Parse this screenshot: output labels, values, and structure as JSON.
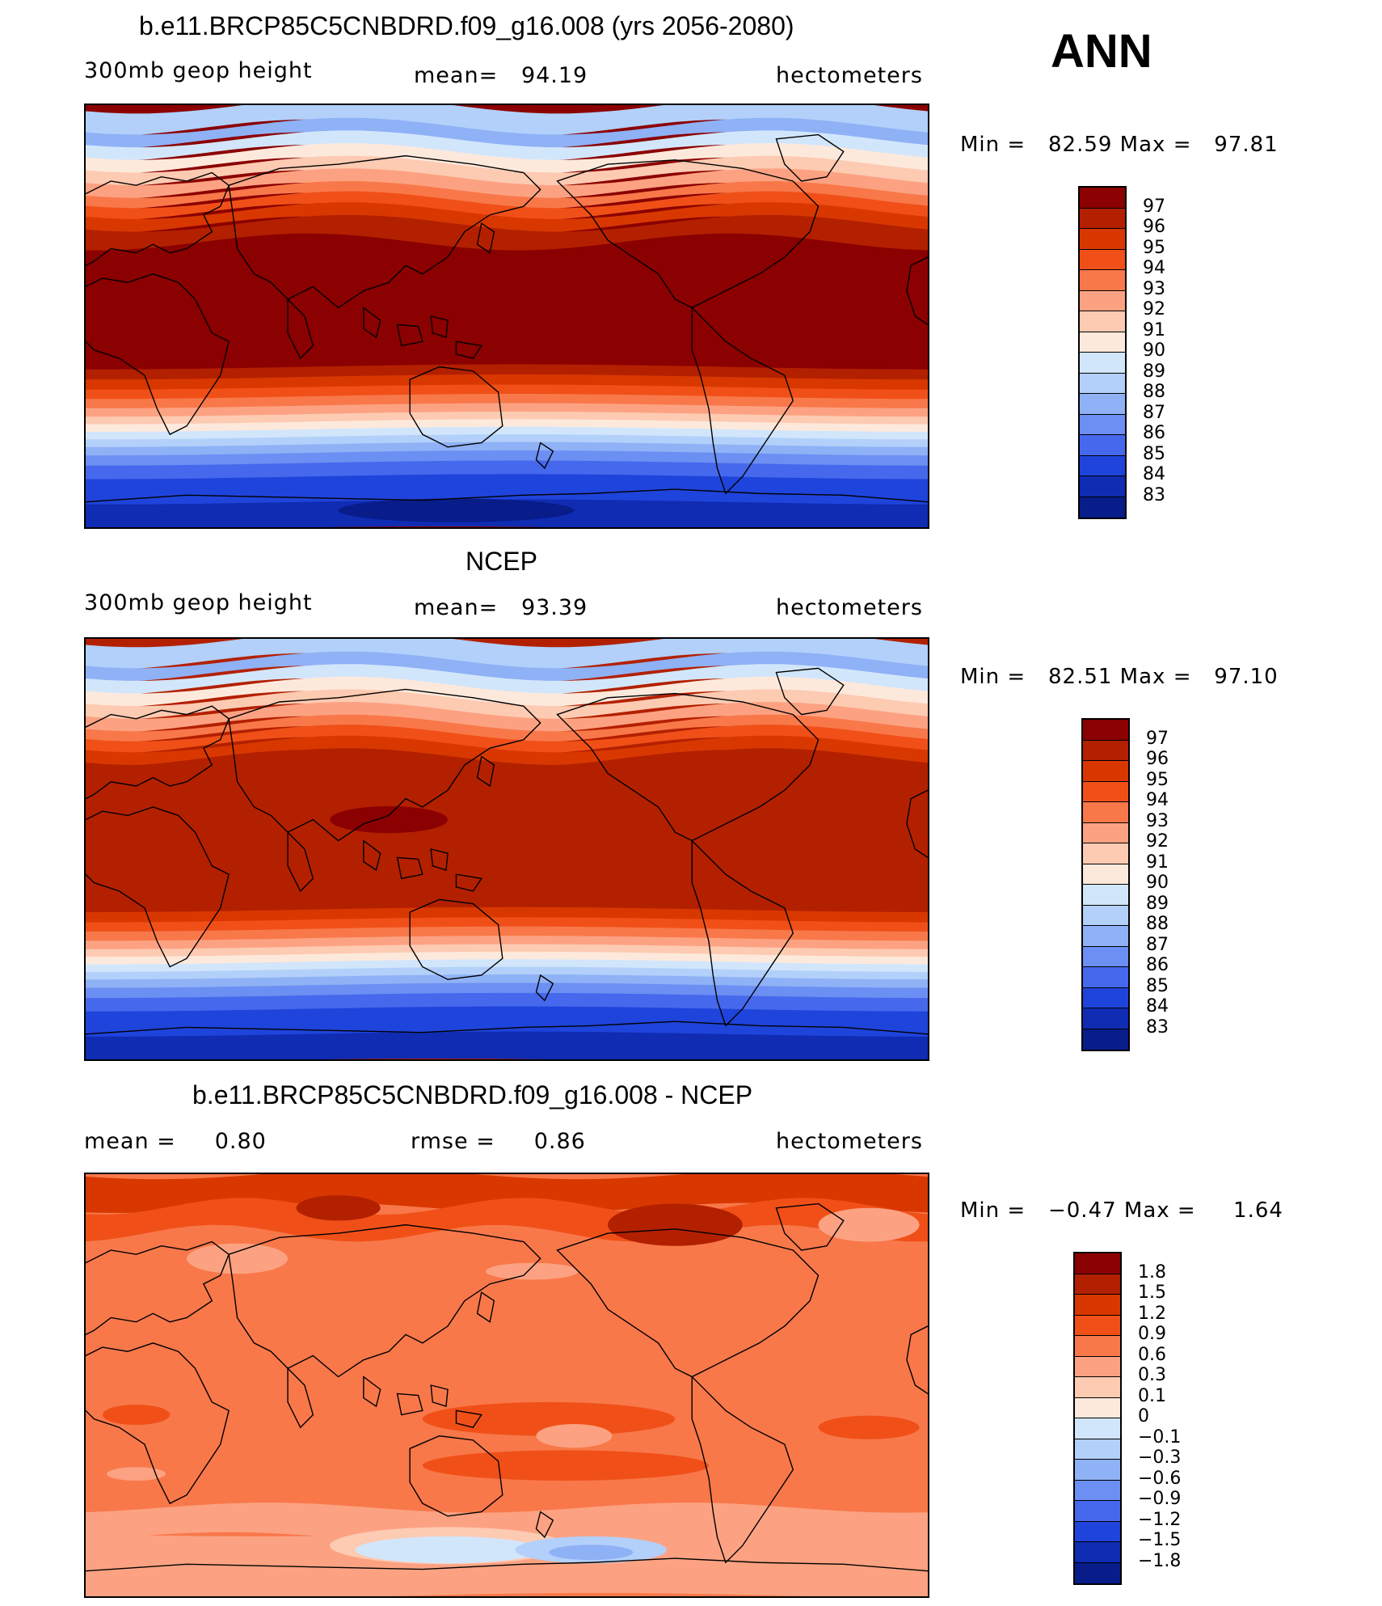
{
  "header": {
    "season": "ANN"
  },
  "panels": [
    {
      "title": "b.e11.BRCP85C5CNBDRD.f09_g16.008 (yrs 2056-2080)",
      "left_label": "300mb geop height",
      "middle_label": "mean=   94.19",
      "right_label": "hectometers",
      "minmax": "Min =   82.59 Max =   97.81",
      "map_kind": "model",
      "colorbar": {
        "labels": [
          "97",
          "96",
          "95",
          "94",
          "93",
          "92",
          "91",
          "90",
          "89",
          "88",
          "87",
          "86",
          "85",
          "84",
          "83"
        ],
        "colors": [
          "#8b0000",
          "#b32000",
          "#d83800",
          "#f05018",
          "#f8784a",
          "#fca282",
          "#fdcab2",
          "#fde9dc",
          "#d2e6fb",
          "#b2d0fa",
          "#8fb1f6",
          "#6b8ff2",
          "#4668ec",
          "#1f44dc",
          "#0f2cb2",
          "#081c8a"
        ]
      }
    },
    {
      "title": "NCEP",
      "left_label": "300mb geop height",
      "middle_label": "mean=   93.39",
      "right_label": "hectometers",
      "minmax": "Min =   82.51 Max =   97.10",
      "map_kind": "obs",
      "colorbar": {
        "labels": [
          "97",
          "96",
          "95",
          "94",
          "93",
          "92",
          "91",
          "90",
          "89",
          "88",
          "87",
          "86",
          "85",
          "84",
          "83"
        ],
        "colors": [
          "#8b0000",
          "#b32000",
          "#d83800",
          "#f05018",
          "#f8784a",
          "#fca282",
          "#fdcab2",
          "#fde9dc",
          "#d2e6fb",
          "#b2d0fa",
          "#8fb1f6",
          "#6b8ff2",
          "#4668ec",
          "#1f44dc",
          "#0f2cb2",
          "#081c8a"
        ]
      }
    },
    {
      "title": "b.e11.BRCP85C5CNBDRD.f09_g16.008 - NCEP",
      "left_label": "mean =     0.80",
      "middle_label": "rmse =     0.86",
      "right_label": "hectometers",
      "minmax": "Min =   −0.47 Max =     1.64",
      "map_kind": "diff",
      "colorbar": {
        "labels": [
          "1.8",
          "1.5",
          "1.2",
          "0.9",
          "0.6",
          "0.3",
          "0.1",
          "0",
          "−0.1",
          "−0.3",
          "−0.6",
          "−0.9",
          "−1.2",
          "−1.5",
          "−1.8"
        ],
        "colors": [
          "#8b0000",
          "#b32000",
          "#d83800",
          "#f05018",
          "#f8784a",
          "#fca282",
          "#fdcab2",
          "#fde9dc",
          "#d2e6fb",
          "#b2d0fa",
          "#8fb1f6",
          "#6b8ff2",
          "#4668ec",
          "#1f44dc",
          "#0f2cb2",
          "#081c8a"
        ]
      }
    }
  ]
}
